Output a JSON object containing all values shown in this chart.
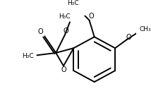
{
  "background_color": "#ffffff",
  "line_color": "#000000",
  "line_width": 1.4,
  "figsize": [
    2.14,
    1.46
  ],
  "dpi": 100,
  "xlim": [
    0,
    214
  ],
  "ylim": [
    0,
    146
  ]
}
